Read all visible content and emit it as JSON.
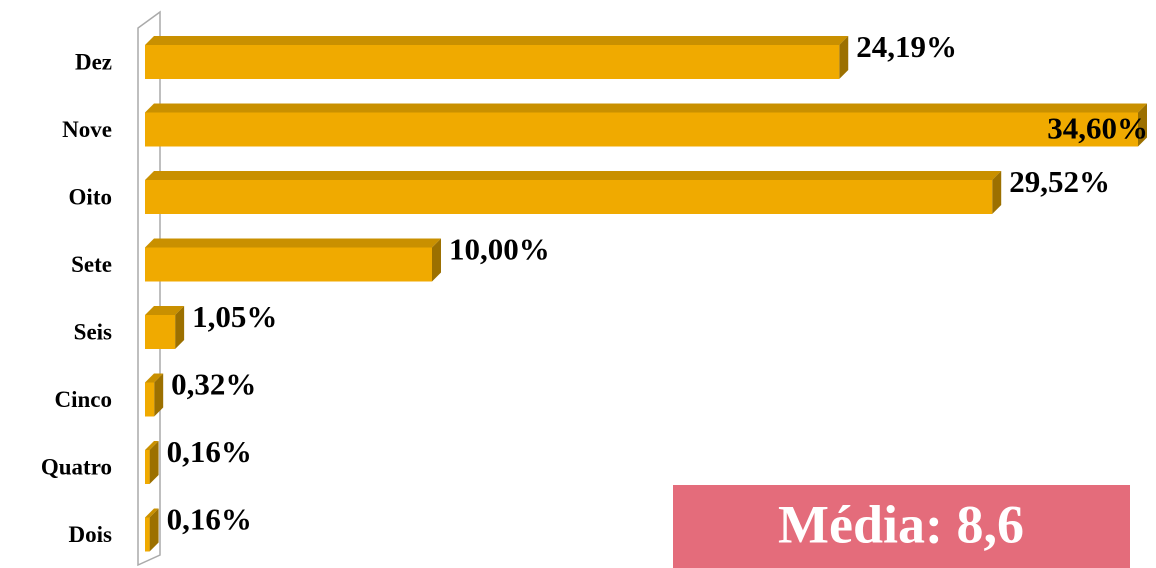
{
  "chart_data": {
    "type": "bar",
    "orientation": "horizontal",
    "categories": [
      "Dez",
      "Nove",
      "Oito",
      "Sete",
      "Seis",
      "Cinco",
      "Quatro",
      "Dois"
    ],
    "values": [
      24.19,
      34.6,
      29.52,
      10,
      1.05,
      0.32,
      0.16,
      0.16
    ],
    "value_labels": [
      "24,19%",
      "34,60%",
      "29,52%",
      "10,00%",
      "1,05%",
      "0,32%",
      "0,16%",
      "0,16%"
    ],
    "color": "#f0aa00",
    "annotation": "Média: 8,6"
  }
}
